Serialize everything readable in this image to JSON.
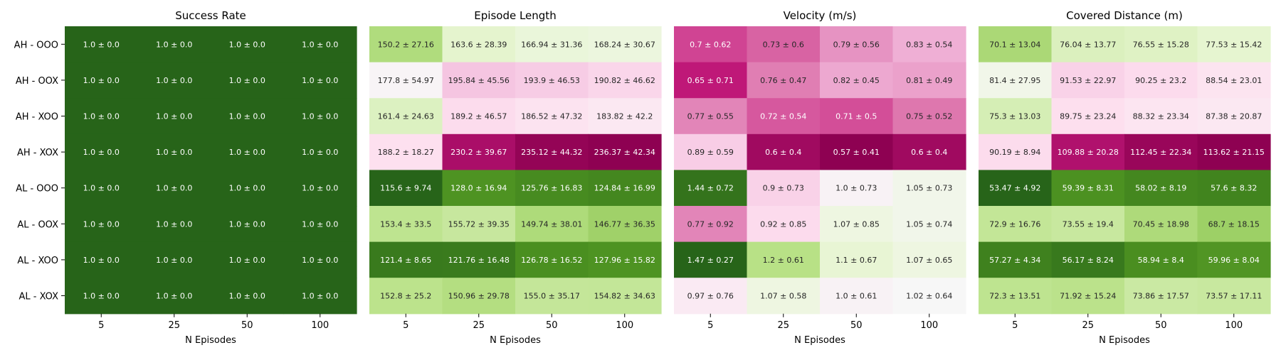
{
  "figure": {
    "row_labels": [
      "AH - OOO",
      "AH - OOX",
      "AH - XOO",
      "AH - XOX",
      "AL - OOO",
      "AL - OOX",
      "AL - XOO",
      "AL - XOX"
    ],
    "col_labels": [
      "5",
      "25",
      "50",
      "100"
    ],
    "xlabel": "N Episodes"
  },
  "chart_data": [
    {
      "type": "heatmap",
      "title": "Success Rate",
      "xlabel": "N Episodes",
      "ylabel": "",
      "x": [
        "5",
        "25",
        "50",
        "100"
      ],
      "y": [
        "AH - OOO",
        "AH - OOX",
        "AH - XOO",
        "AH - XOX",
        "AL - OOO",
        "AL - OOX",
        "AL - XOO",
        "AL - XOX"
      ],
      "mean": [
        [
          1.0,
          1.0,
          1.0,
          1.0
        ],
        [
          1.0,
          1.0,
          1.0,
          1.0
        ],
        [
          1.0,
          1.0,
          1.0,
          1.0
        ],
        [
          1.0,
          1.0,
          1.0,
          1.0
        ],
        [
          1.0,
          1.0,
          1.0,
          1.0
        ],
        [
          1.0,
          1.0,
          1.0,
          1.0
        ],
        [
          1.0,
          1.0,
          1.0,
          1.0
        ],
        [
          1.0,
          1.0,
          1.0,
          1.0
        ]
      ],
      "labels": [
        [
          "1.0 ± 0.0",
          "1.0 ± 0.0",
          "1.0 ± 0.0",
          "1.0 ± 0.0"
        ],
        [
          "1.0 ± 0.0",
          "1.0 ± 0.0",
          "1.0 ± 0.0",
          "1.0 ± 0.0"
        ],
        [
          "1.0 ± 0.0",
          "1.0 ± 0.0",
          "1.0 ± 0.0",
          "1.0 ± 0.0"
        ],
        [
          "1.0 ± 0.0",
          "1.0 ± 0.0",
          "1.0 ± 0.0",
          "1.0 ± 0.0"
        ],
        [
          "1.0 ± 0.0",
          "1.0 ± 0.0",
          "1.0 ± 0.0",
          "1.0 ± 0.0"
        ],
        [
          "1.0 ± 0.0",
          "1.0 ± 0.0",
          "1.0 ± 0.0",
          "1.0 ± 0.0"
        ],
        [
          "1.0 ± 0.0",
          "1.0 ± 0.0",
          "1.0 ± 0.0",
          "1.0 ± 0.0"
        ],
        [
          "1.0 ± 0.0",
          "1.0 ± 0.0",
          "1.0 ± 0.0",
          "1.0 ± 0.0"
        ]
      ],
      "colormap": "PiYG",
      "higher_is_better": true
    },
    {
      "type": "heatmap",
      "title": "Episode Length",
      "xlabel": "N Episodes",
      "ylabel": "",
      "x": [
        "5",
        "25",
        "50",
        "100"
      ],
      "y": [
        "AH - OOO",
        "AH - OOX",
        "AH - XOO",
        "AH - XOX",
        "AL - OOO",
        "AL - OOX",
        "AL - XOO",
        "AL - XOX"
      ],
      "mean": [
        [
          150.2,
          163.6,
          166.94,
          168.24
        ],
        [
          177.8,
          195.84,
          193.9,
          190.82
        ],
        [
          161.4,
          189.2,
          186.52,
          183.82
        ],
        [
          188.2,
          230.2,
          235.12,
          236.37
        ],
        [
          115.6,
          128.0,
          125.76,
          124.84
        ],
        [
          153.4,
          155.72,
          149.74,
          146.77
        ],
        [
          121.4,
          121.76,
          126.78,
          127.96
        ],
        [
          152.8,
          150.96,
          155.0,
          154.82
        ]
      ],
      "labels": [
        [
          "150.2 ± 27.16",
          "163.6 ± 28.39",
          "166.94 ± 31.36",
          "168.24 ± 30.67"
        ],
        [
          "177.8 ± 54.97",
          "195.84 ± 45.56",
          "193.9 ± 46.53",
          "190.82 ± 46.62"
        ],
        [
          "161.4 ± 24.63",
          "189.2 ± 46.57",
          "186.52 ± 47.32",
          "183.82 ± 42.2"
        ],
        [
          "188.2 ± 18.27",
          "230.2 ± 39.67",
          "235.12 ± 44.32",
          "236.37 ± 42.34"
        ],
        [
          "115.6 ± 9.74",
          "128.0 ± 16.94",
          "125.76 ± 16.83",
          "124.84 ± 16.99"
        ],
        [
          "153.4 ± 33.5",
          "155.72 ± 39.35",
          "149.74 ± 38.01",
          "146.77 ± 36.35"
        ],
        [
          "121.4 ± 8.65",
          "121.76 ± 16.48",
          "126.78 ± 16.52",
          "127.96 ± 15.82"
        ],
        [
          "152.8 ± 25.2",
          "150.96 ± 29.78",
          "155.0 ± 35.17",
          "154.82 ± 34.63"
        ]
      ],
      "colormap": "PiYG",
      "higher_is_better": false
    },
    {
      "type": "heatmap",
      "title": "Velocity (m/s)",
      "xlabel": "N Episodes",
      "ylabel": "",
      "x": [
        "5",
        "25",
        "50",
        "100"
      ],
      "y": [
        "AH - OOO",
        "AH - OOX",
        "AH - XOO",
        "AH - XOX",
        "AL - OOO",
        "AL - OOX",
        "AL - XOO",
        "AL - XOX"
      ],
      "mean": [
        [
          0.7,
          0.73,
          0.79,
          0.83
        ],
        [
          0.65,
          0.76,
          0.82,
          0.81
        ],
        [
          0.77,
          0.72,
          0.71,
          0.75
        ],
        [
          0.89,
          0.6,
          0.57,
          0.6
        ],
        [
          1.44,
          0.9,
          1.0,
          1.05
        ],
        [
          0.77,
          0.92,
          1.07,
          1.05
        ],
        [
          1.47,
          1.2,
          1.1,
          1.07
        ],
        [
          0.97,
          1.07,
          1.0,
          1.02
        ]
      ],
      "labels": [
        [
          "0.7 ± 0.62",
          "0.73 ± 0.6",
          "0.79 ± 0.56",
          "0.83 ± 0.54"
        ],
        [
          "0.65 ± 0.71",
          "0.76 ± 0.47",
          "0.82 ± 0.45",
          "0.81 ± 0.49"
        ],
        [
          "0.77 ± 0.55",
          "0.72 ± 0.54",
          "0.71 ± 0.5",
          "0.75 ± 0.52"
        ],
        [
          "0.89 ± 0.59",
          "0.6 ± 0.4",
          "0.57 ± 0.41",
          "0.6 ± 0.4"
        ],
        [
          "1.44 ± 0.72",
          "0.9 ± 0.73",
          "1.0 ± 0.73",
          "1.05 ± 0.73"
        ],
        [
          "0.77 ± 0.92",
          "0.92 ± 0.85",
          "1.07 ± 0.85",
          "1.05 ± 0.74"
        ],
        [
          "1.47 ± 0.27",
          "1.2 ± 0.61",
          "1.1 ± 0.67",
          "1.07 ± 0.65"
        ],
        [
          "0.97 ± 0.76",
          "1.07 ± 0.58",
          "1.0 ± 0.61",
          "1.02 ± 0.64"
        ]
      ],
      "colormap": "PiYG",
      "higher_is_better": true
    },
    {
      "type": "heatmap",
      "title": "Covered Distance (m)",
      "xlabel": "N Episodes",
      "ylabel": "",
      "x": [
        "5",
        "25",
        "50",
        "100"
      ],
      "y": [
        "AH - OOO",
        "AH - OOX",
        "AH - XOO",
        "AH - XOX",
        "AL - OOO",
        "AL - OOX",
        "AL - XOO",
        "AL - XOX"
      ],
      "mean": [
        [
          70.1,
          76.04,
          76.55,
          77.53
        ],
        [
          81.4,
          91.53,
          90.25,
          88.54
        ],
        [
          75.3,
          89.75,
          88.32,
          87.38
        ],
        [
          90.19,
          109.88,
          112.45,
          113.62
        ],
        [
          53.47,
          59.39,
          58.02,
          57.6
        ],
        [
          72.9,
          73.55,
          70.45,
          68.7
        ],
        [
          57.27,
          56.17,
          58.94,
          59.96
        ],
        [
          72.3,
          71.92,
          73.86,
          73.57
        ]
      ],
      "labels": [
        [
          "70.1 ± 13.04",
          "76.04 ± 13.77",
          "76.55 ± 15.28",
          "77.53 ± 15.42"
        ],
        [
          "81.4 ± 27.95",
          "91.53 ± 22.97",
          "90.25 ± 23.2",
          "88.54 ± 23.01"
        ],
        [
          "75.3 ± 13.03",
          "89.75 ± 23.24",
          "88.32 ± 23.34",
          "87.38 ± 20.87"
        ],
        [
          "90.19 ± 8.94",
          "109.88 ± 20.28",
          "112.45 ± 22.34",
          "113.62 ± 21.15"
        ],
        [
          "53.47 ± 4.92",
          "59.39 ± 8.31",
          "58.02 ± 8.19",
          "57.6 ± 8.32"
        ],
        [
          "72.9 ± 16.76",
          "73.55 ± 19.4",
          "70.45 ± 18.98",
          "68.7 ± 18.15"
        ],
        [
          "57.27 ± 4.34",
          "56.17 ± 8.24",
          "58.94 ± 8.4",
          "59.96 ± 8.04"
        ],
        [
          "72.3 ± 13.51",
          "71.92 ± 15.24",
          "73.86 ± 17.57",
          "73.57 ± 17.11"
        ]
      ],
      "colormap": "PiYG",
      "higher_is_better": false
    }
  ]
}
